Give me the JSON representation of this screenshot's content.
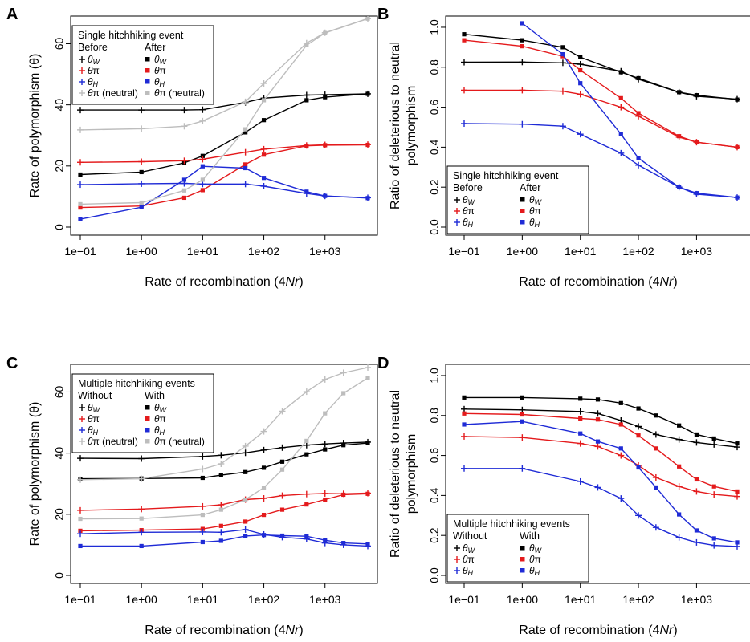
{
  "colors": {
    "black": "#000000",
    "red": "#e41a1c",
    "blue": "#1f2bd6",
    "grey": "#bdbdbd"
  },
  "chart_data": [
    {
      "panel": "A",
      "type": "line",
      "xscale": "log",
      "xlabel": "Rate of recombination (4Nr)",
      "ylabel": "Rate of polymorphism (θ)",
      "xlim": [
        0.1,
        5000
      ],
      "ylim": [
        0,
        68
      ],
      "xticks": [
        "1e−01",
        "1e+00",
        "1e+01",
        "1e+02",
        "1e+03"
      ],
      "yticks": [
        "0",
        "20",
        "40",
        "60"
      ],
      "legend": {
        "title": "Single hitchhiking event",
        "col1": "Before",
        "col2": "After",
        "entries": [
          "θW",
          "θπ",
          "θH",
          "θπ (neutral)"
        ],
        "placement": "top-left"
      },
      "series": [
        {
          "color": "black",
          "marker": "plus",
          "x": [
            0.1,
            1,
            5,
            10,
            50,
            100,
            500,
            1000,
            5000
          ],
          "y": [
            38.3,
            38.3,
            38.3,
            38.4,
            40.8,
            42.2,
            43.2,
            43.3,
            43.6
          ]
        },
        {
          "color": "black",
          "marker": "square",
          "x": [
            0.1,
            1,
            5,
            10,
            50,
            100,
            500,
            1000,
            5000
          ],
          "y": [
            17.2,
            18.0,
            21.0,
            23.3,
            31.0,
            35.0,
            41.5,
            42.5,
            43.6
          ]
        },
        {
          "color": "red",
          "marker": "plus",
          "x": [
            0.1,
            1,
            5,
            10,
            50,
            100,
            500,
            1000,
            5000
          ],
          "y": [
            21.2,
            21.4,
            21.7,
            22.2,
            24.5,
            25.5,
            26.7,
            26.9,
            27.0
          ]
        },
        {
          "color": "red",
          "marker": "square",
          "x": [
            0.1,
            1,
            5,
            10,
            50,
            100,
            500,
            1000,
            5000
          ],
          "y": [
            6.4,
            6.9,
            9.6,
            12.1,
            20.5,
            23.7,
            26.6,
            26.8,
            26.9
          ]
        },
        {
          "color": "blue",
          "marker": "plus",
          "x": [
            0.1,
            1,
            5,
            10,
            50,
            100,
            500,
            1000,
            5000
          ],
          "y": [
            13.9,
            14.2,
            14.3,
            14.1,
            14.1,
            13.4,
            11.0,
            10.2,
            9.6
          ]
        },
        {
          "color": "blue",
          "marker": "square",
          "x": [
            0.1,
            1,
            5,
            10,
            50,
            100,
            500,
            1000,
            5000
          ],
          "y": [
            2.6,
            6.5,
            15.5,
            19.9,
            19.3,
            16.1,
            11.6,
            10.2,
            9.5
          ]
        },
        {
          "color": "grey",
          "marker": "plus",
          "x": [
            0.1,
            1,
            5,
            10,
            50,
            100,
            500,
            1000,
            5000
          ],
          "y": [
            31.8,
            32.2,
            33.0,
            34.7,
            41.0,
            47.0,
            60.2,
            63.6,
            68.2
          ]
        },
        {
          "color": "grey",
          "marker": "square",
          "x": [
            0.1,
            1,
            5,
            10,
            50,
            100,
            500,
            1000,
            5000
          ],
          "y": [
            7.5,
            8.0,
            12.0,
            15.5,
            32.0,
            41.5,
            59.5,
            63.5,
            68.2
          ]
        }
      ]
    },
    {
      "panel": "B",
      "type": "line",
      "xscale": "log",
      "xlabel": "Rate of recombination (4Nr)",
      "ylabel": "Ratio of deleterious to neutral polymorphism",
      "ylabel_lines": [
        "Ratio of deleterious to neutral",
        "polymorphism"
      ],
      "xlim": [
        0.1,
        5000
      ],
      "ylim": [
        0,
        1.04
      ],
      "xticks": [
        "1e−01",
        "1e+00",
        "1e+01",
        "1e+02",
        "1e+03"
      ],
      "yticks": [
        "0.0",
        "0.2",
        "0.4",
        "0.6",
        "0.8",
        "1.0"
      ],
      "legend": {
        "title": "Single hitchhiking event",
        "col1": "Before",
        "col2": "After",
        "entries": [
          "θW",
          "θπ",
          "θH"
        ],
        "placement": "bottom-left"
      },
      "series": [
        {
          "color": "black",
          "marker": "plus",
          "x": [
            0.1,
            1,
            5,
            10,
            50,
            100,
            500,
            1000,
            5000
          ],
          "y": [
            0.825,
            0.826,
            0.822,
            0.815,
            0.78,
            0.74,
            0.675,
            0.655,
            0.64
          ]
        },
        {
          "color": "black",
          "marker": "square",
          "x": [
            0.1,
            1,
            5,
            10,
            50,
            100,
            500,
            1000,
            5000
          ],
          "y": [
            0.965,
            0.935,
            0.9,
            0.85,
            0.775,
            0.745,
            0.675,
            0.66,
            0.638
          ]
        },
        {
          "color": "red",
          "marker": "plus",
          "x": [
            0.1,
            1,
            5,
            10,
            50,
            100,
            500,
            1000,
            5000
          ],
          "y": [
            0.685,
            0.685,
            0.68,
            0.665,
            0.6,
            0.555,
            0.45,
            0.425,
            0.4
          ]
        },
        {
          "color": "red",
          "marker": "square",
          "x": [
            0.1,
            1,
            5,
            10,
            50,
            100,
            500,
            1000,
            5000
          ],
          "y": [
            0.935,
            0.905,
            0.855,
            0.785,
            0.645,
            0.57,
            0.455,
            0.425,
            0.4
          ]
        },
        {
          "color": "blue",
          "marker": "plus",
          "x": [
            0.1,
            1,
            5,
            10,
            50,
            100,
            500,
            1000,
            5000
          ],
          "y": [
            0.518,
            0.515,
            0.505,
            0.465,
            0.37,
            0.31,
            0.2,
            0.165,
            0.148
          ]
        },
        {
          "color": "blue",
          "marker": "square",
          "x": [
            1,
            5,
            10,
            50,
            100,
            500,
            1000,
            5000
          ],
          "y": [
            1.02,
            0.865,
            0.72,
            0.465,
            0.345,
            0.2,
            0.17,
            0.148
          ]
        }
      ]
    },
    {
      "panel": "C",
      "type": "line",
      "xscale": "log",
      "xlabel": "Rate of recombination (4Nr)",
      "ylabel": "Rate of polymorphism (θ)",
      "xlim": [
        0.1,
        5000
      ],
      "ylim": [
        0,
        68
      ],
      "xticks": [
        "1e−01",
        "1e+00",
        "1e+01",
        "1e+02",
        "1e+03"
      ],
      "yticks": [
        "0",
        "20",
        "40",
        "60"
      ],
      "legend": {
        "title": "Multiple hitchhiking events",
        "col1": "Without",
        "col2": "With",
        "entries": [
          "θW",
          "θπ",
          "θH",
          "θπ (neutral)"
        ],
        "placement": "top-left"
      },
      "series": [
        {
          "color": "black",
          "marker": "plus",
          "x": [
            0.1,
            1,
            10,
            20,
            50,
            100,
            200,
            500,
            1000,
            2000,
            5000
          ],
          "y": [
            38.3,
            38.2,
            38.9,
            39.3,
            40.1,
            41.0,
            41.8,
            42.6,
            43.0,
            43.3,
            43.6
          ]
        },
        {
          "color": "black",
          "marker": "square",
          "x": [
            0.1,
            1,
            10,
            20,
            50,
            100,
            200,
            500,
            1000,
            2000,
            5000
          ],
          "y": [
            31.6,
            31.7,
            31.9,
            32.8,
            33.8,
            35.2,
            37.2,
            39.6,
            41.2,
            42.6,
            43.3
          ]
        },
        {
          "color": "red",
          "marker": "plus",
          "x": [
            0.1,
            1,
            10,
            20,
            50,
            100,
            200,
            500,
            1000,
            2000,
            5000
          ],
          "y": [
            21.3,
            21.7,
            22.6,
            23.1,
            24.8,
            25.2,
            26.1,
            26.6,
            26.8,
            26.7,
            26.9
          ]
        },
        {
          "color": "red",
          "marker": "square",
          "x": [
            0.1,
            1,
            10,
            20,
            50,
            100,
            200,
            500,
            1000,
            2000,
            5000
          ],
          "y": [
            14.6,
            14.8,
            15.2,
            16.2,
            17.6,
            19.8,
            21.5,
            23.2,
            24.8,
            26.4,
            26.7
          ]
        },
        {
          "color": "blue",
          "marker": "plus",
          "x": [
            0.1,
            1,
            10,
            20,
            50,
            100,
            200,
            500,
            1000,
            2000,
            5000
          ],
          "y": [
            13.6,
            14.1,
            14.2,
            14.1,
            15.0,
            13.4,
            12.5,
            11.9,
            10.6,
            10.0,
            9.6
          ]
        },
        {
          "color": "blue",
          "marker": "square",
          "x": [
            0.1,
            1,
            10,
            20,
            50,
            100,
            200,
            500,
            1000,
            2000,
            5000
          ],
          "y": [
            9.6,
            9.6,
            10.9,
            11.3,
            12.9,
            13.2,
            13.0,
            12.8,
            11.5,
            10.6,
            10.3
          ]
        },
        {
          "color": "grey",
          "marker": "plus",
          "x": [
            0.1,
            1,
            10,
            20,
            50,
            100,
            200,
            500,
            1000,
            2000,
            5000
          ],
          "y": [
            31.3,
            31.6,
            34.8,
            36.5,
            42.3,
            47.1,
            53.7,
            60.1,
            64.1,
            66.3,
            68.0
          ]
        },
        {
          "color": "grey",
          "marker": "square",
          "x": [
            0.1,
            1,
            10,
            20,
            50,
            100,
            200,
            500,
            1000,
            2000,
            5000
          ],
          "y": [
            18.5,
            18.6,
            19.8,
            21.5,
            24.8,
            28.7,
            34.6,
            44.0,
            53.0,
            59.6,
            64.6
          ]
        }
      ]
    },
    {
      "panel": "D",
      "type": "line",
      "xscale": "log",
      "xlabel": "Rate of recombination (4Nr)",
      "ylabel": "Ratio of deleterious to neutral polymorphism",
      "ylabel_lines": [
        "Ratio of deleterious to neutral",
        "polymorphism"
      ],
      "xlim": [
        0.1,
        5000
      ],
      "ylim": [
        0,
        1.04
      ],
      "xticks": [
        "1e−01",
        "1e+00",
        "1e+01",
        "1e+02",
        "1e+03"
      ],
      "yticks": [
        "0.0",
        "0.2",
        "0.4",
        "0.6",
        "0.8",
        "1.0"
      ],
      "legend": {
        "title": "Multiple hitchhiking events",
        "col1": "Without",
        "col2": "With",
        "entries": [
          "θW",
          "θπ",
          "θH"
        ],
        "placement": "bottom-left"
      },
      "series": [
        {
          "color": "black",
          "marker": "plus",
          "x": [
            0.1,
            1,
            10,
            20,
            50,
            100,
            200,
            500,
            1000,
            2000,
            5000
          ],
          "y": [
            0.832,
            0.828,
            0.82,
            0.81,
            0.775,
            0.745,
            0.705,
            0.68,
            0.665,
            0.655,
            0.642
          ]
        },
        {
          "color": "black",
          "marker": "square",
          "x": [
            0.1,
            1,
            10,
            20,
            50,
            100,
            200,
            500,
            1000,
            2000,
            5000
          ],
          "y": [
            0.89,
            0.89,
            0.884,
            0.88,
            0.862,
            0.835,
            0.8,
            0.75,
            0.705,
            0.685,
            0.66
          ]
        },
        {
          "color": "red",
          "marker": "plus",
          "x": [
            0.1,
            1,
            10,
            20,
            50,
            100,
            200,
            500,
            1000,
            2000,
            5000
          ],
          "y": [
            0.695,
            0.69,
            0.66,
            0.645,
            0.6,
            0.55,
            0.49,
            0.445,
            0.42,
            0.405,
            0.395
          ]
        },
        {
          "color": "red",
          "marker": "square",
          "x": [
            0.1,
            1,
            10,
            20,
            50,
            100,
            200,
            500,
            1000,
            2000,
            5000
          ],
          "y": [
            0.81,
            0.805,
            0.785,
            0.78,
            0.755,
            0.7,
            0.635,
            0.545,
            0.48,
            0.445,
            0.42
          ]
        },
        {
          "color": "blue",
          "marker": "plus",
          "x": [
            0.1,
            1,
            10,
            20,
            50,
            100,
            200,
            500,
            1000,
            2000,
            5000
          ],
          "y": [
            0.535,
            0.535,
            0.47,
            0.44,
            0.385,
            0.3,
            0.24,
            0.19,
            0.165,
            0.15,
            0.145
          ]
        },
        {
          "color": "blue",
          "marker": "square",
          "x": [
            0.1,
            1,
            10,
            20,
            50,
            100,
            200,
            500,
            1000,
            2000,
            5000
          ],
          "y": [
            0.755,
            0.77,
            0.71,
            0.67,
            0.635,
            0.54,
            0.44,
            0.305,
            0.225,
            0.185,
            0.165
          ]
        }
      ]
    }
  ]
}
